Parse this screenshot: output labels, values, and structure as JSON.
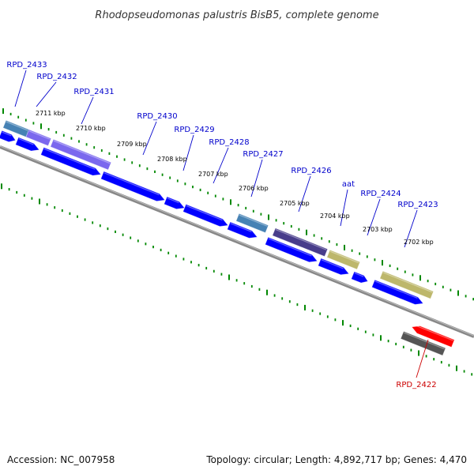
{
  "title": "Rhodopseudomonas palustris BisB5, complete genome",
  "footer": {
    "accession": "Accession: NC_007958",
    "summary": "Topology: circular; Length: 4,892,717 bp; Genes: 4,470"
  },
  "colors": {
    "label_blue": "#0000cc",
    "label_red": "#cc0000",
    "cds_blue": "#0000ff",
    "steel_blue": "#4682b4",
    "slate_purple": "#7b68ee",
    "dark_slate": "#483d8b",
    "khaki": "#bdb76b",
    "red": "#ff0000",
    "gray": "#555555",
    "backbone": "#888888",
    "ticks": "#008800"
  },
  "kbp_labels": [
    "2711 kbp",
    "2710 kbp",
    "2709 kbp",
    "2708 kbp",
    "2707 kbp",
    "2706 kbp",
    "2705 kbp",
    "2704 kbp",
    "2703 kbp",
    "2702 kbp"
  ],
  "gene_labels": [
    {
      "text": "RPD_2433",
      "color": "#0000cc"
    },
    {
      "text": "RPD_2432",
      "color": "#0000cc"
    },
    {
      "text": "RPD_2431",
      "color": "#0000cc"
    },
    {
      "text": "RPD_2430",
      "color": "#0000cc"
    },
    {
      "text": "RPD_2429",
      "color": "#0000cc"
    },
    {
      "text": "RPD_2428",
      "color": "#0000cc"
    },
    {
      "text": "RPD_2427",
      "color": "#0000cc"
    },
    {
      "text": "RPD_2426",
      "color": "#0000cc"
    },
    {
      "text": "aat",
      "color": "#0000cc"
    },
    {
      "text": "RPD_2424",
      "color": "#0000cc"
    },
    {
      "text": "RPD_2423",
      "color": "#0000cc"
    },
    {
      "text": "RPD_2422",
      "color": "#cc0000"
    }
  ]
}
